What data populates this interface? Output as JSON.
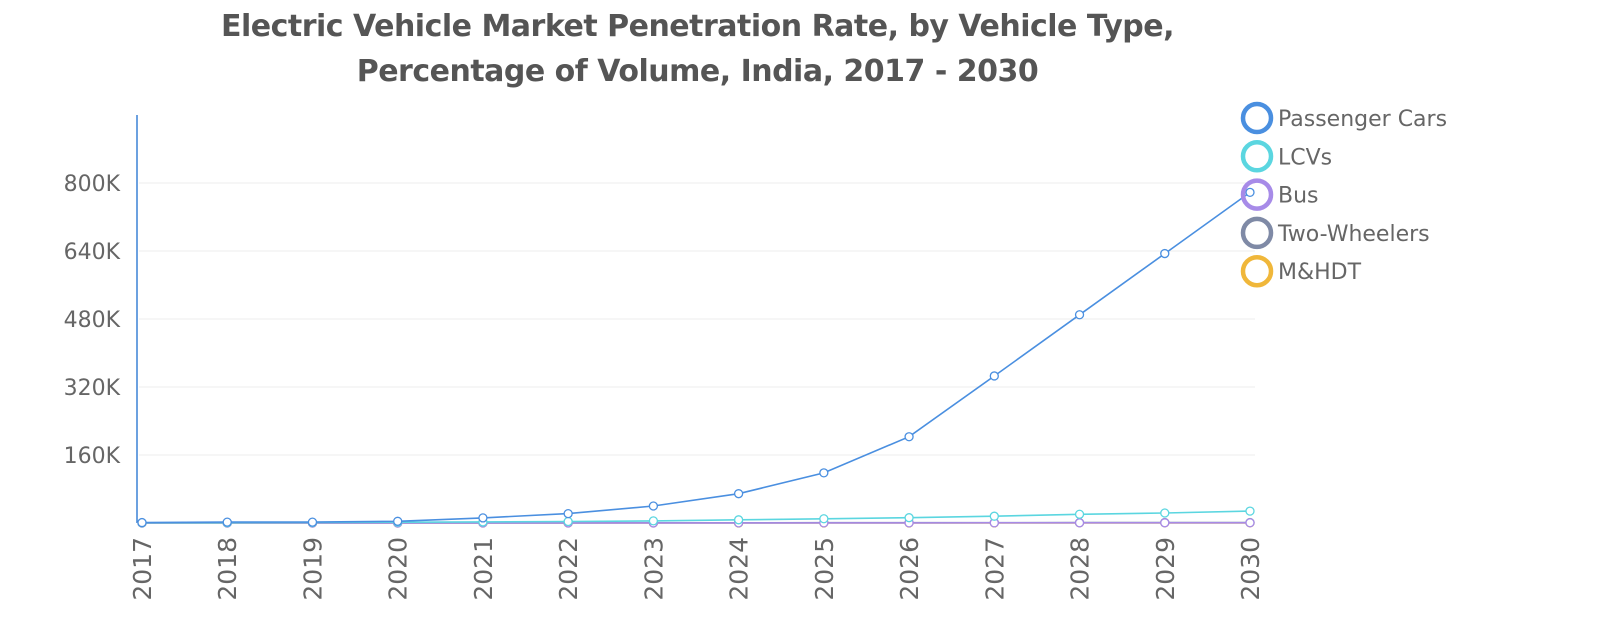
{
  "chart_data": {
    "type": "line",
    "title_lines": [
      "Electric Vehicle Market Penetration Rate, by Vehicle Type,",
      "Percentage of Volume, India, 2017 - 2030"
    ],
    "xlabel": "",
    "ylabel": "",
    "x": [
      "2017",
      "2018",
      "2019",
      "2020",
      "2021",
      "2022",
      "2023",
      "2024",
      "2025",
      "2026",
      "2027",
      "2028",
      "2029",
      "2030"
    ],
    "ylim": [
      0,
      960000
    ],
    "yticks": [
      160000,
      320000,
      480000,
      640000,
      800000
    ],
    "ytick_labels": [
      "160K",
      "320K",
      "480K",
      "640K",
      "800K"
    ],
    "legend_position": "top-right",
    "grid": true,
    "series": [
      {
        "name": "Passenger Cars",
        "color": "#4a8fe0",
        "values": [
          1000,
          2000,
          2000,
          4000,
          12000,
          22000,
          40000,
          69000,
          118000,
          203000,
          346000,
          490000,
          634000,
          778000
        ]
      },
      {
        "name": "LCVs",
        "color": "#5bd6e0",
        "values": [
          500,
          800,
          1200,
          1800,
          2500,
          3500,
          5000,
          7500,
          10000,
          12500,
          16000,
          20500,
          23500,
          28000
        ]
      },
      {
        "name": "Bus",
        "color": "#a78be8",
        "values": [
          50,
          60,
          80,
          100,
          120,
          150,
          200,
          250,
          300,
          350,
          400,
          450,
          500,
          550
        ]
      },
      {
        "name": "Two-Wheelers",
        "color": "#7f8aa6",
        "values": [
          100,
          120,
          150,
          200,
          250,
          300,
          400,
          500,
          600,
          700,
          800,
          900,
          1000,
          1100
        ]
      },
      {
        "name": "M&HDT",
        "color": "#f0b73a",
        "values": [
          20,
          30,
          40,
          50,
          60,
          80,
          100,
          120,
          150,
          180,
          210,
          240,
          270,
          300
        ]
      }
    ]
  }
}
